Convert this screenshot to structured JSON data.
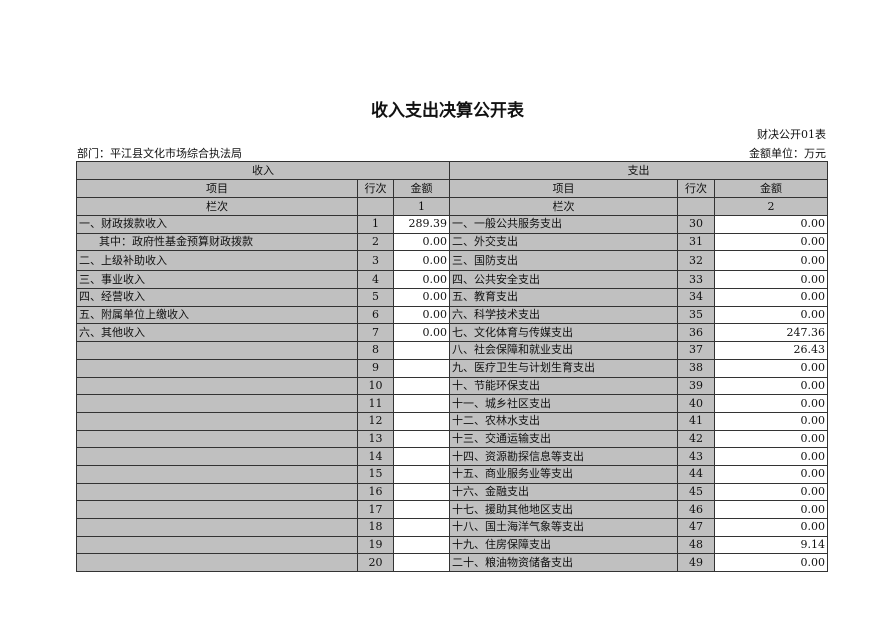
{
  "title": "收入支出决算公开表",
  "form_no": "财决公开01表",
  "department": "部门：平江县文化市场综合执法局",
  "unit": "金额单位：万元",
  "header": {
    "income": "收入",
    "expense": "支出",
    "item": "项目",
    "row_no": "行次",
    "amount": "金额",
    "column_no": "栏次",
    "income_col": "1",
    "expense_col": "2"
  },
  "rows": [
    {
      "in_item": "一、财政拨款收入",
      "in_no": "1",
      "in_amt": "289.39",
      "ex_item": "一、一般公共服务支出",
      "ex_no": "30",
      "ex_amt": "0.00"
    },
    {
      "in_item": "其中：政府性基金预算财政拨款",
      "in_no": "2",
      "in_amt": "0.00",
      "ex_item": "二、外交支出",
      "ex_no": "31",
      "ex_amt": "0.00"
    },
    {
      "in_item": "二、上级补助收入",
      "in_no": "3",
      "in_amt": "0.00",
      "ex_item": "三、国防支出",
      "ex_no": "32",
      "ex_amt": "0.00"
    },
    {
      "in_item": "三、事业收入",
      "in_no": "4",
      "in_amt": "0.00",
      "ex_item": "四、公共安全支出",
      "ex_no": "33",
      "ex_amt": "0.00"
    },
    {
      "in_item": "四、经营收入",
      "in_no": "5",
      "in_amt": "0.00",
      "ex_item": "五、教育支出",
      "ex_no": "34",
      "ex_amt": "0.00"
    },
    {
      "in_item": "五、附属单位上缴收入",
      "in_no": "6",
      "in_amt": "0.00",
      "ex_item": "六、科学技术支出",
      "ex_no": "35",
      "ex_amt": "0.00"
    },
    {
      "in_item": "六、其他收入",
      "in_no": "7",
      "in_amt": "0.00",
      "ex_item": "七、文化体育与传媒支出",
      "ex_no": "36",
      "ex_amt": "247.36"
    },
    {
      "in_item": "",
      "in_no": "8",
      "in_amt": "",
      "ex_item": "八、社会保障和就业支出",
      "ex_no": "37",
      "ex_amt": "26.43"
    },
    {
      "in_item": "",
      "in_no": "9",
      "in_amt": "",
      "ex_item": "九、医疗卫生与计划生育支出",
      "ex_no": "38",
      "ex_amt": "0.00"
    },
    {
      "in_item": "",
      "in_no": "10",
      "in_amt": "",
      "ex_item": "十、节能环保支出",
      "ex_no": "39",
      "ex_amt": "0.00"
    },
    {
      "in_item": "",
      "in_no": "11",
      "in_amt": "",
      "ex_item": "十一、城乡社区支出",
      "ex_no": "40",
      "ex_amt": "0.00"
    },
    {
      "in_item": "",
      "in_no": "12",
      "in_amt": "",
      "ex_item": "十二、农林水支出",
      "ex_no": "41",
      "ex_amt": "0.00"
    },
    {
      "in_item": "",
      "in_no": "13",
      "in_amt": "",
      "ex_item": "十三、交通运输支出",
      "ex_no": "42",
      "ex_amt": "0.00"
    },
    {
      "in_item": "",
      "in_no": "14",
      "in_amt": "",
      "ex_item": "十四、资源勘探信息等支出",
      "ex_no": "43",
      "ex_amt": "0.00"
    },
    {
      "in_item": "",
      "in_no": "15",
      "in_amt": "",
      "ex_item": "十五、商业服务业等支出",
      "ex_no": "44",
      "ex_amt": "0.00"
    },
    {
      "in_item": "",
      "in_no": "16",
      "in_amt": "",
      "ex_item": "十六、金融支出",
      "ex_no": "45",
      "ex_amt": "0.00"
    },
    {
      "in_item": "",
      "in_no": "17",
      "in_amt": "",
      "ex_item": "十七、援助其他地区支出",
      "ex_no": "46",
      "ex_amt": "0.00"
    },
    {
      "in_item": "",
      "in_no": "18",
      "in_amt": "",
      "ex_item": "十八、国土海洋气象等支出",
      "ex_no": "47",
      "ex_amt": "0.00"
    },
    {
      "in_item": "",
      "in_no": "19",
      "in_amt": "",
      "ex_item": "十九、住房保障支出",
      "ex_no": "48",
      "ex_amt": "9.14"
    },
    {
      "in_item": "",
      "in_no": "20",
      "in_amt": "",
      "ex_item": "二十、粮油物资储备支出",
      "ex_no": "49",
      "ex_amt": "0.00"
    }
  ]
}
